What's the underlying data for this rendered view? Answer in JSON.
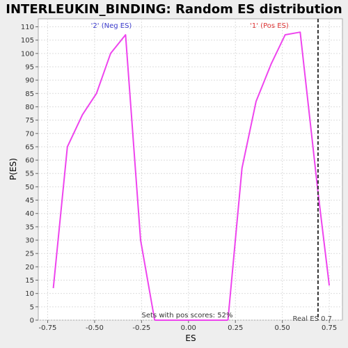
{
  "chart_data": {
    "type": "line",
    "title": "INTERLEUKIN_BINDING: Random ES distribution",
    "xlabel": "ES",
    "ylabel": "P(ES)",
    "xlim": [
      -0.8,
      0.82
    ],
    "ylim": [
      0,
      113
    ],
    "x_ticks": [
      -0.75,
      -0.5,
      -0.25,
      0.0,
      0.25,
      0.5,
      0.75
    ],
    "x_tick_labels": [
      "-0.75",
      "-0.50",
      "-0.25",
      "0.00",
      "0.25",
      "0.50",
      "0.75"
    ],
    "y_ticks": [
      0,
      5,
      10,
      15,
      20,
      25,
      30,
      35,
      40,
      45,
      50,
      55,
      60,
      65,
      70,
      75,
      80,
      85,
      90,
      95,
      100,
      105,
      110
    ],
    "grid": true,
    "series": [
      {
        "name": "'2' (Neg ES)",
        "color": "#ee44ee",
        "x": [
          -0.72,
          -0.645,
          -0.565,
          -0.49,
          -0.415,
          -0.335,
          -0.255,
          -0.18
        ],
        "y": [
          12,
          65,
          77,
          85,
          100,
          107,
          30,
          0
        ]
      },
      {
        "name": "'1' (Pos ES)",
        "color": "#ee44ee",
        "x": [
          0.21,
          0.285,
          0.36,
          0.44,
          0.515,
          0.595,
          0.69,
          0.75
        ],
        "y": [
          0,
          57,
          82,
          96,
          107,
          108,
          48,
          13
        ]
      }
    ],
    "baseline": {
      "x": [
        -0.18,
        0.21
      ],
      "y": [
        0,
        0
      ]
    },
    "labels": {
      "neg": {
        "text": "'2' (Neg ES)",
        "color": "#3a3acc"
      },
      "pos": {
        "text": "'1' (Pos ES)",
        "color": "#dd3333"
      }
    },
    "real_es": {
      "value": 0.69,
      "label": "Real ES 0.7"
    },
    "annotation": "Sets with pos scores: 52%"
  }
}
